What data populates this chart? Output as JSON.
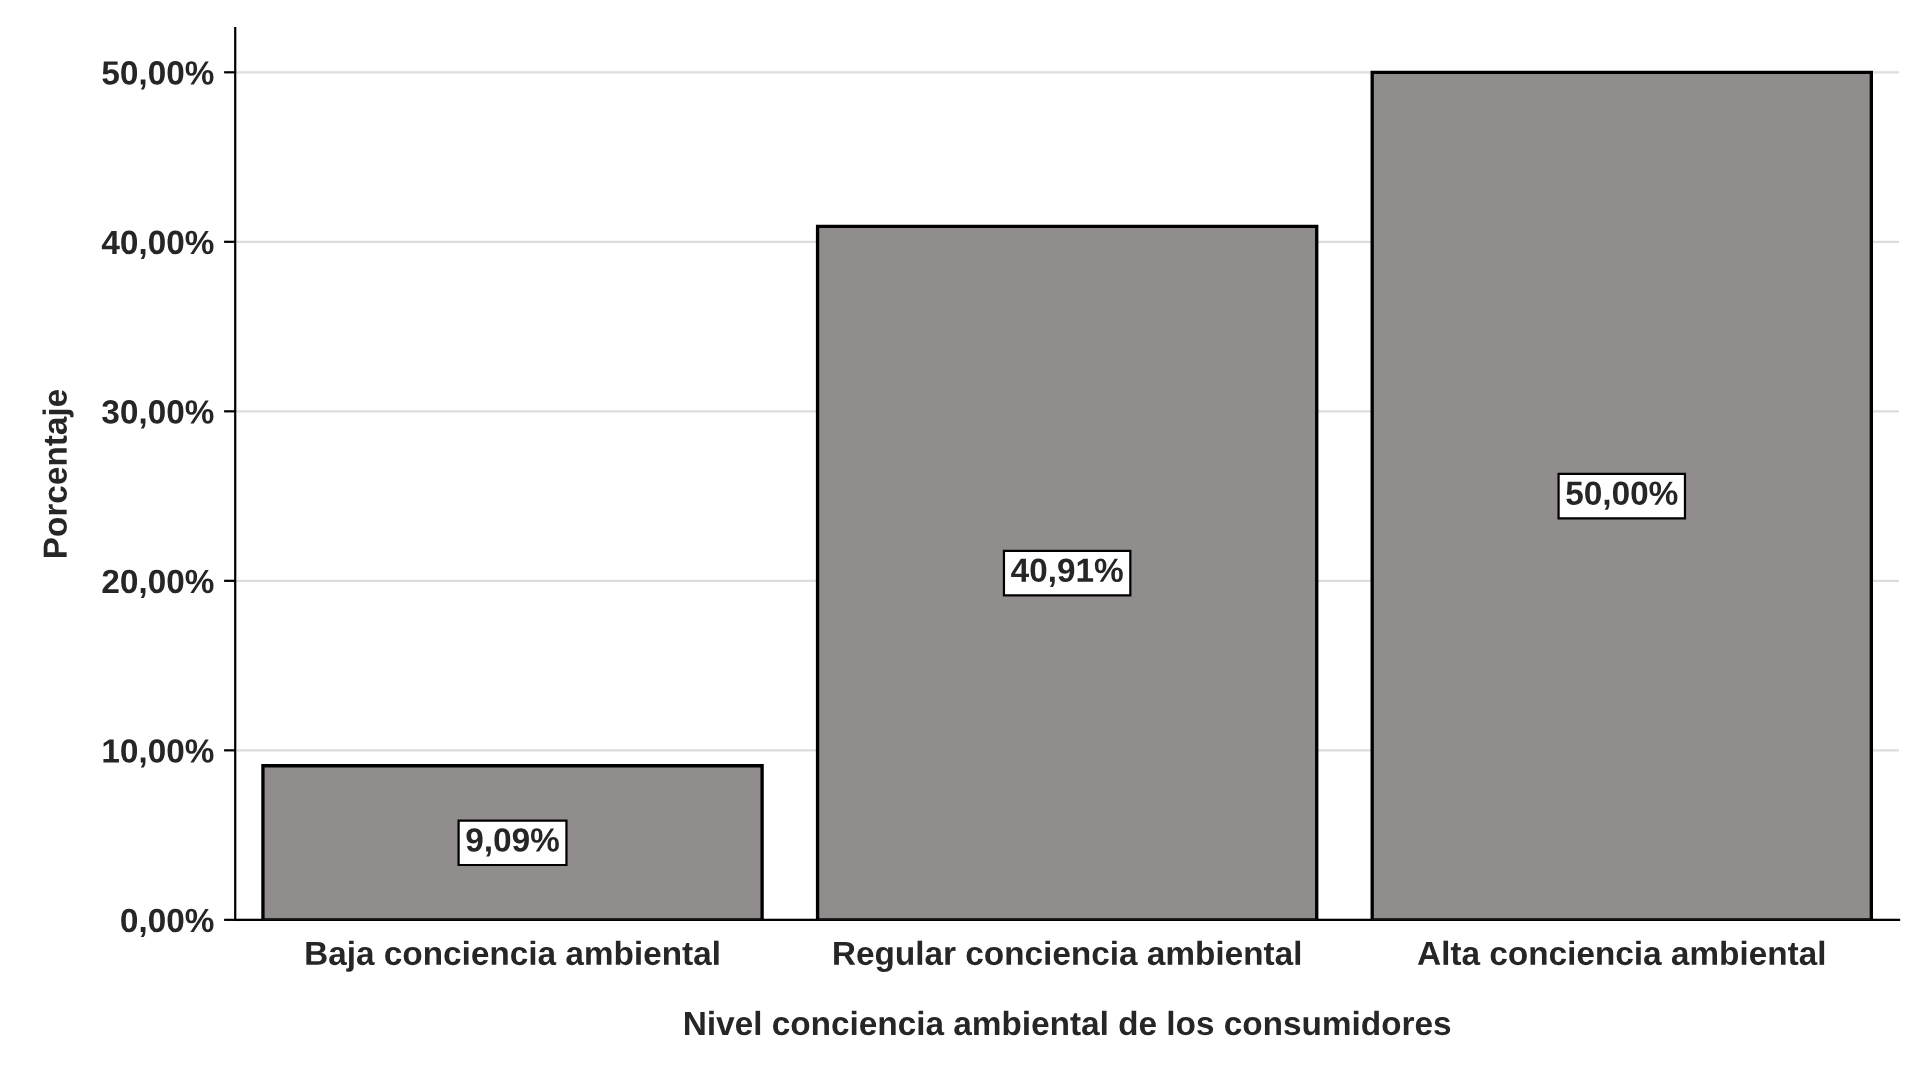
{
  "chart_data": {
    "type": "bar",
    "xlabel": "Nivel conciencia ambiental de los consumidores",
    "ylabel": "Porcentaje",
    "categories": [
      "Baja conciencia ambiental",
      "Regular conciencia ambiental",
      "Alta conciencia ambiental"
    ],
    "values": [
      9.09,
      40.91,
      50.0
    ],
    "value_labels": [
      "9,09%",
      "40,91%",
      "50,00%"
    ],
    "color": "#918d8c",
    "ylim": [
      0,
      52.6
    ],
    "yticks": [
      {
        "value": 0,
        "label": "0,00%"
      },
      {
        "value": 10,
        "label": "10,00%"
      },
      {
        "value": 20,
        "label": "20,00%"
      },
      {
        "value": 30,
        "label": "30,00%"
      },
      {
        "value": 40,
        "label": "40,00%"
      },
      {
        "value": 50,
        "label": "50,00%"
      }
    ],
    "grid": "y"
  }
}
